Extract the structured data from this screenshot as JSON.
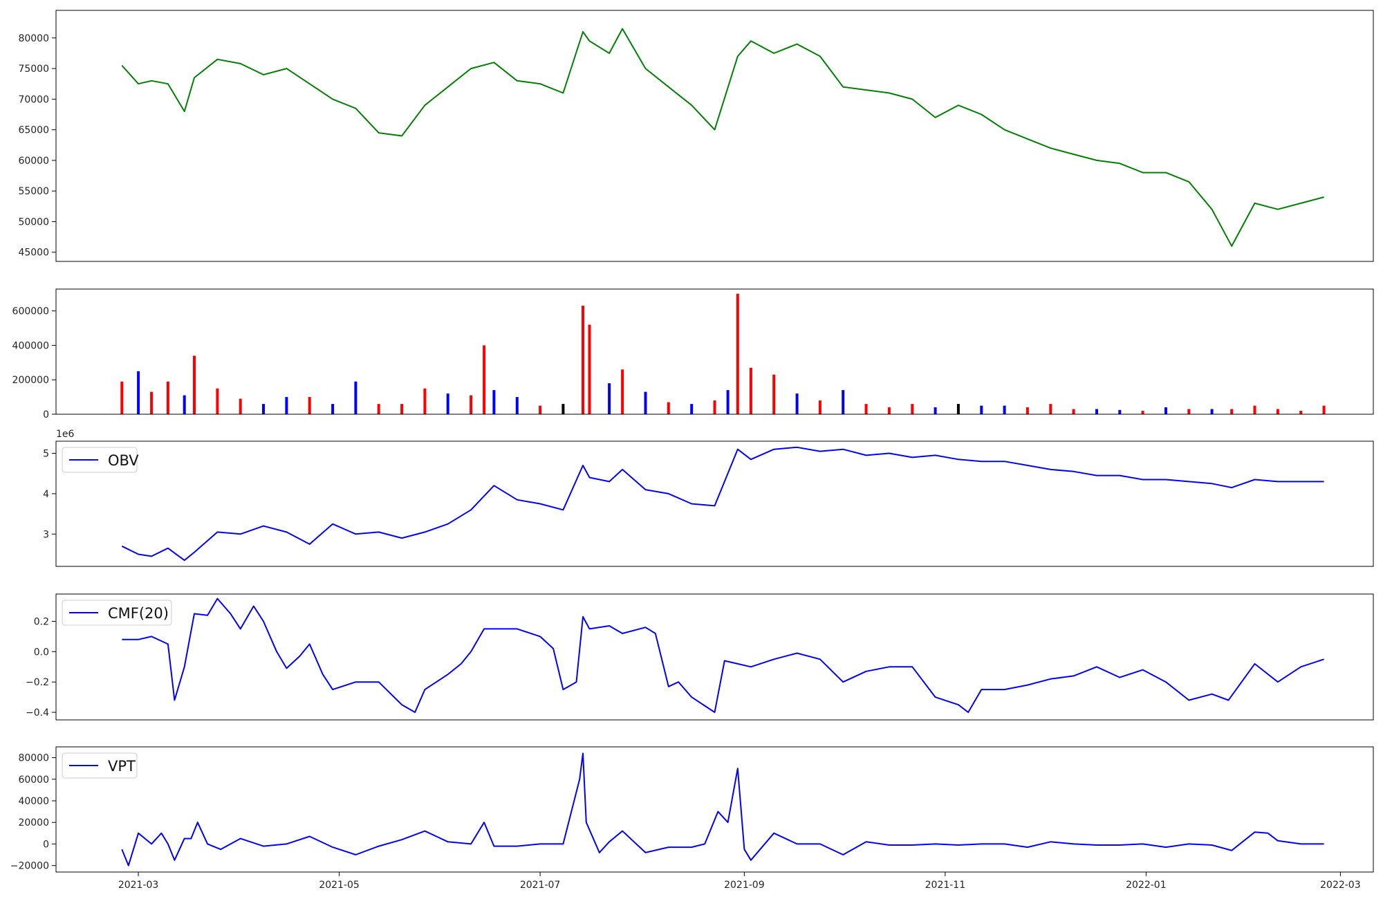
{
  "chart_data": [
    {
      "type": "line",
      "panel": "price",
      "color": "#008000",
      "ylim": [
        43500,
        84500
      ],
      "yticks": [
        45000,
        50000,
        55000,
        60000,
        65000,
        70000,
        75000,
        80000
      ],
      "ytick_labels": [
        "45000",
        "50000",
        "55000",
        "60000",
        "65000",
        "70000",
        "75000",
        "80000"
      ],
      "x": [
        "2021-02-24",
        "2021-03-01",
        "2021-03-05",
        "2021-03-10",
        "2021-03-15",
        "2021-03-18",
        "2021-03-25",
        "2021-04-01",
        "2021-04-08",
        "2021-04-15",
        "2021-04-22",
        "2021-04-29",
        "2021-05-06",
        "2021-05-13",
        "2021-05-20",
        "2021-05-27",
        "2021-06-03",
        "2021-06-10",
        "2021-06-17",
        "2021-06-24",
        "2021-07-01",
        "2021-07-08",
        "2021-07-14",
        "2021-07-16",
        "2021-07-22",
        "2021-07-26",
        "2021-08-02",
        "2021-08-09",
        "2021-08-16",
        "2021-08-23",
        "2021-08-30",
        "2021-09-03",
        "2021-09-10",
        "2021-09-17",
        "2021-09-24",
        "2021-10-01",
        "2021-10-08",
        "2021-10-15",
        "2021-10-22",
        "2021-10-29",
        "2021-11-05",
        "2021-11-12",
        "2021-11-19",
        "2021-11-26",
        "2021-12-03",
        "2021-12-10",
        "2021-12-17",
        "2021-12-24",
        "2021-12-31",
        "2022-01-07",
        "2022-01-14",
        "2022-01-21",
        "2022-01-27",
        "2022-02-03",
        "2022-02-10",
        "2022-02-17",
        "2022-02-24"
      ],
      "values": [
        75500,
        72500,
        73000,
        72500,
        68000,
        73500,
        76500,
        75800,
        74000,
        75000,
        72500,
        70000,
        68500,
        64500,
        64000,
        69000,
        72000,
        75000,
        76000,
        73000,
        72500,
        71000,
        81000,
        79500,
        77500,
        81500,
        75000,
        72000,
        69000,
        65000,
        77000,
        79500,
        77500,
        79000,
        77000,
        72000,
        71500,
        71000,
        70000,
        67000,
        69000,
        67500,
        65000,
        63500,
        62000,
        61000,
        60000,
        59500,
        58000,
        58000,
        56500,
        52000,
        46000,
        53000,
        52000,
        53000,
        54000
      ],
      "xlim": [
        "2021-02-04",
        "2022-03-11"
      ],
      "xticks": [
        "2021-03-01",
        "2021-05-01",
        "2021-07-01",
        "2021-09-01",
        "2021-11-01",
        "2022-01-01",
        "2022-03-01"
      ],
      "xtick_labels": [
        "2021-03",
        "2021-05",
        "2021-07",
        "2021-09",
        "2021-11",
        "2022-01",
        "2022-03"
      ],
      "show_xticks": false
    },
    {
      "type": "bar",
      "panel": "volume",
      "ylim": [
        0,
        727000
      ],
      "yticks": [
        0,
        200000,
        400000,
        600000
      ],
      "ytick_labels": [
        "0",
        "200000",
        "400000",
        "600000"
      ],
      "x": [
        "2021-02-24",
        "2021-03-01",
        "2021-03-05",
        "2021-03-10",
        "2021-03-15",
        "2021-03-18",
        "2021-03-25",
        "2021-04-01",
        "2021-04-08",
        "2021-04-15",
        "2021-04-22",
        "2021-04-29",
        "2021-05-06",
        "2021-05-13",
        "2021-05-20",
        "2021-05-27",
        "2021-06-03",
        "2021-06-10",
        "2021-06-14",
        "2021-06-17",
        "2021-06-24",
        "2021-07-01",
        "2021-07-08",
        "2021-07-14",
        "2021-07-16",
        "2021-07-22",
        "2021-07-26",
        "2021-08-02",
        "2021-08-09",
        "2021-08-16",
        "2021-08-23",
        "2021-08-27",
        "2021-08-30",
        "2021-09-03",
        "2021-09-10",
        "2021-09-17",
        "2021-09-24",
        "2021-10-01",
        "2021-10-08",
        "2021-10-15",
        "2021-10-22",
        "2021-10-29",
        "2021-11-05",
        "2021-11-12",
        "2021-11-19",
        "2021-11-26",
        "2021-12-03",
        "2021-12-10",
        "2021-12-17",
        "2021-12-24",
        "2021-12-31",
        "2022-01-07",
        "2022-01-14",
        "2022-01-21",
        "2022-01-27",
        "2022-02-03",
        "2022-02-10",
        "2022-02-17",
        "2022-02-24"
      ],
      "values": [
        190000,
        250000,
        130000,
        190000,
        110000,
        340000,
        150000,
        90000,
        60000,
        100000,
        100000,
        60000,
        190000,
        60000,
        60000,
        150000,
        120000,
        110000,
        400000,
        140000,
        100000,
        50000,
        60000,
        630000,
        520000,
        180000,
        260000,
        130000,
        70000,
        60000,
        80000,
        140000,
        700000,
        270000,
        230000,
        120000,
        80000,
        140000,
        60000,
        40000,
        60000,
        40000,
        60000,
        50000,
        50000,
        40000,
        60000,
        30000,
        30000,
        25000,
        20000,
        40000,
        30000,
        30000,
        30000,
        50000,
        30000,
        20000,
        50000
      ],
      "bar_colors": [
        "red",
        "blue",
        "red",
        "red",
        "blue",
        "red",
        "red",
        "red",
        "blue",
        "blue",
        "red",
        "blue",
        "blue",
        "red",
        "red",
        "red",
        "blue",
        "red",
        "red",
        "blue",
        "blue",
        "red",
        "black",
        "red",
        "red",
        "blue",
        "red",
        "blue",
        "red",
        "blue",
        "red",
        "blue",
        "red",
        "red",
        "red",
        "blue",
        "red",
        "blue",
        "red",
        "red",
        "red",
        "blue",
        "black",
        "blue",
        "blue",
        "red",
        "red",
        "red",
        "blue",
        "blue",
        "red",
        "blue",
        "red",
        "blue",
        "red",
        "red",
        "red",
        "red",
        "red"
      ],
      "color_map": {
        "red": "#ff0000",
        "blue": "#0000ff",
        "black": "#000000"
      },
      "xlim": [
        "2021-02-04",
        "2022-03-11"
      ],
      "show_xticks": false
    },
    {
      "type": "line",
      "panel": "obv",
      "color": "#0000ff",
      "exponent_label": "1e6",
      "ylim": [
        2.2,
        5.3
      ],
      "yticks": [
        3,
        4,
        5
      ],
      "ytick_labels": [
        "3",
        "4",
        "5"
      ],
      "legend": [
        {
          "name": "OBV"
        }
      ],
      "x": [
        "2021-02-24",
        "2021-03-01",
        "2021-03-05",
        "2021-03-10",
        "2021-03-15",
        "2021-03-18",
        "2021-03-25",
        "2021-04-01",
        "2021-04-08",
        "2021-04-15",
        "2021-04-22",
        "2021-04-29",
        "2021-05-06",
        "2021-05-13",
        "2021-05-20",
        "2021-05-27",
        "2021-06-03",
        "2021-06-10",
        "2021-06-17",
        "2021-06-24",
        "2021-07-01",
        "2021-07-08",
        "2021-07-14",
        "2021-07-16",
        "2021-07-22",
        "2021-07-26",
        "2021-08-02",
        "2021-08-09",
        "2021-08-16",
        "2021-08-23",
        "2021-08-30",
        "2021-09-03",
        "2021-09-10",
        "2021-09-17",
        "2021-09-24",
        "2021-10-01",
        "2021-10-08",
        "2021-10-15",
        "2021-10-22",
        "2021-10-29",
        "2021-11-05",
        "2021-11-12",
        "2021-11-19",
        "2021-11-26",
        "2021-12-03",
        "2021-12-10",
        "2021-12-17",
        "2021-12-24",
        "2021-12-31",
        "2022-01-07",
        "2022-01-14",
        "2022-01-21",
        "2022-01-27",
        "2022-02-03",
        "2022-02-10",
        "2022-02-17",
        "2022-02-24"
      ],
      "values": [
        2.7,
        2.5,
        2.45,
        2.65,
        2.35,
        2.55,
        3.05,
        3.0,
        3.2,
        3.05,
        2.75,
        3.25,
        3.0,
        3.05,
        2.9,
        3.05,
        3.25,
        3.6,
        4.2,
        3.85,
        3.75,
        3.6,
        4.7,
        4.4,
        4.3,
        4.6,
        4.1,
        4.0,
        3.75,
        3.7,
        5.1,
        4.85,
        5.1,
        5.15,
        5.05,
        5.1,
        4.95,
        5.0,
        4.9,
        4.95,
        4.85,
        4.8,
        4.8,
        4.7,
        4.6,
        4.55,
        4.45,
        4.45,
        4.35,
        4.35,
        4.3,
        4.25,
        4.15,
        4.35,
        4.3,
        4.3,
        4.3
      ],
      "xlim": [
        "2021-02-04",
        "2022-03-11"
      ],
      "show_xticks": false
    },
    {
      "type": "line",
      "panel": "cmf",
      "color": "#0000ff",
      "ylim": [
        -0.45,
        0.38
      ],
      "yticks": [
        -0.4,
        -0.2,
        0.0,
        0.2
      ],
      "ytick_labels": [
        "−0.4",
        "−0.2",
        "0.0",
        "0.2"
      ],
      "legend": [
        {
          "name": "CMF(20)"
        }
      ],
      "x": [
        "2021-02-24",
        "2021-03-01",
        "2021-03-05",
        "2021-03-10",
        "2021-03-12",
        "2021-03-15",
        "2021-03-18",
        "2021-03-22",
        "2021-03-25",
        "2021-03-29",
        "2021-04-01",
        "2021-04-05",
        "2021-04-08",
        "2021-04-12",
        "2021-04-15",
        "2021-04-19",
        "2021-04-22",
        "2021-04-26",
        "2021-04-29",
        "2021-05-06",
        "2021-05-13",
        "2021-05-20",
        "2021-05-24",
        "2021-05-27",
        "2021-06-03",
        "2021-06-07",
        "2021-06-10",
        "2021-06-14",
        "2021-06-17",
        "2021-06-24",
        "2021-07-01",
        "2021-07-05",
        "2021-07-08",
        "2021-07-12",
        "2021-07-14",
        "2021-07-16",
        "2021-07-22",
        "2021-07-26",
        "2021-08-02",
        "2021-08-05",
        "2021-08-09",
        "2021-08-12",
        "2021-08-16",
        "2021-08-23",
        "2021-08-26",
        "2021-08-30",
        "2021-09-03",
        "2021-09-10",
        "2021-09-17",
        "2021-09-24",
        "2021-10-01",
        "2021-10-08",
        "2021-10-15",
        "2021-10-22",
        "2021-10-29",
        "2021-11-05",
        "2021-11-08",
        "2021-11-12",
        "2021-11-19",
        "2021-11-26",
        "2021-12-03",
        "2021-12-10",
        "2021-12-17",
        "2021-12-24",
        "2021-12-31",
        "2022-01-07",
        "2022-01-14",
        "2022-01-21",
        "2022-01-26",
        "2022-02-03",
        "2022-02-10",
        "2022-02-17",
        "2022-02-24"
      ],
      "values": [
        0.08,
        0.08,
        0.1,
        0.05,
        -0.32,
        -0.1,
        0.25,
        0.24,
        0.35,
        0.25,
        0.15,
        0.3,
        0.2,
        0.0,
        -0.11,
        -0.03,
        0.05,
        -0.15,
        -0.25,
        -0.2,
        -0.2,
        -0.35,
        -0.4,
        -0.25,
        -0.15,
        -0.08,
        0.0,
        0.15,
        0.15,
        0.15,
        0.1,
        0.02,
        -0.25,
        -0.2,
        0.23,
        0.15,
        0.17,
        0.12,
        0.16,
        0.12,
        -0.23,
        -0.2,
        -0.3,
        -0.4,
        -0.06,
        -0.08,
        -0.1,
        -0.05,
        -0.01,
        -0.05,
        -0.2,
        -0.13,
        -0.1,
        -0.1,
        -0.3,
        -0.35,
        -0.4,
        -0.25,
        -0.25,
        -0.22,
        -0.18,
        -0.16,
        -0.1,
        -0.17,
        -0.12,
        -0.2,
        -0.32,
        -0.28,
        -0.32,
        -0.08,
        -0.2,
        -0.1,
        -0.05
      ],
      "xlim": [
        "2021-02-04",
        "2022-03-11"
      ],
      "show_xticks": false
    },
    {
      "type": "line",
      "panel": "vpt",
      "color": "#0000ff",
      "ylim": [
        -26000,
        90000
      ],
      "yticks": [
        -20000,
        0,
        20000,
        40000,
        60000,
        80000
      ],
      "ytick_labels": [
        "−20000",
        "0",
        "20000",
        "40000",
        "60000",
        "80000"
      ],
      "legend": [
        {
          "name": "VPT"
        }
      ],
      "x": [
        "2021-02-24",
        "2021-02-26",
        "2021-03-01",
        "2021-03-05",
        "2021-03-08",
        "2021-03-10",
        "2021-03-12",
        "2021-03-15",
        "2021-03-17",
        "2021-03-19",
        "2021-03-22",
        "2021-03-26",
        "2021-04-01",
        "2021-04-08",
        "2021-04-15",
        "2021-04-22",
        "2021-04-29",
        "2021-05-06",
        "2021-05-13",
        "2021-05-20",
        "2021-05-27",
        "2021-06-03",
        "2021-06-10",
        "2021-06-14",
        "2021-06-17",
        "2021-06-24",
        "2021-07-01",
        "2021-07-08",
        "2021-07-13",
        "2021-07-14",
        "2021-07-15",
        "2021-07-19",
        "2021-07-22",
        "2021-07-26",
        "2021-08-02",
        "2021-08-09",
        "2021-08-16",
        "2021-08-20",
        "2021-08-24",
        "2021-08-27",
        "2021-08-30",
        "2021-09-01",
        "2021-09-03",
        "2021-09-10",
        "2021-09-17",
        "2021-09-24",
        "2021-10-01",
        "2021-10-08",
        "2021-10-15",
        "2021-10-22",
        "2021-10-29",
        "2021-11-05",
        "2021-11-12",
        "2021-11-19",
        "2021-11-26",
        "2021-12-03",
        "2021-12-10",
        "2021-12-17",
        "2021-12-24",
        "2021-12-31",
        "2022-01-07",
        "2022-01-14",
        "2022-01-21",
        "2022-01-27",
        "2022-02-03",
        "2022-02-07",
        "2022-02-10",
        "2022-02-17",
        "2022-02-24"
      ],
      "values": [
        -5000,
        -20000,
        10000,
        0,
        10000,
        0,
        -15000,
        5000,
        5000,
        20000,
        0,
        -5000,
        5000,
        -2000,
        0,
        7000,
        -3000,
        -10000,
        -2000,
        4000,
        12000,
        2000,
        0,
        20000,
        -2000,
        -2000,
        0,
        0,
        60000,
        84000,
        20000,
        -8000,
        2000,
        12000,
        -8000,
        -3000,
        -3000,
        0,
        30000,
        20000,
        70000,
        -5000,
        -15000,
        10000,
        0,
        0,
        -10000,
        2000,
        -1000,
        -1000,
        0,
        -1000,
        0,
        0,
        -3000,
        2000,
        0,
        -1000,
        -1000,
        0,
        -3000,
        0,
        -1000,
        -6000,
        11000,
        10000,
        3000,
        0,
        0
      ],
      "xlim": [
        "2021-02-04",
        "2022-03-11"
      ],
      "xticks": [
        "2021-03-01",
        "2021-05-01",
        "2021-07-01",
        "2021-09-01",
        "2021-11-01",
        "2022-01-01",
        "2022-03-01"
      ],
      "xtick_labels": [
        "2021-03",
        "2021-05",
        "2021-07",
        "2021-09",
        "2021-11",
        "2022-01",
        "2022-03"
      ],
      "show_xticks": true
    }
  ]
}
